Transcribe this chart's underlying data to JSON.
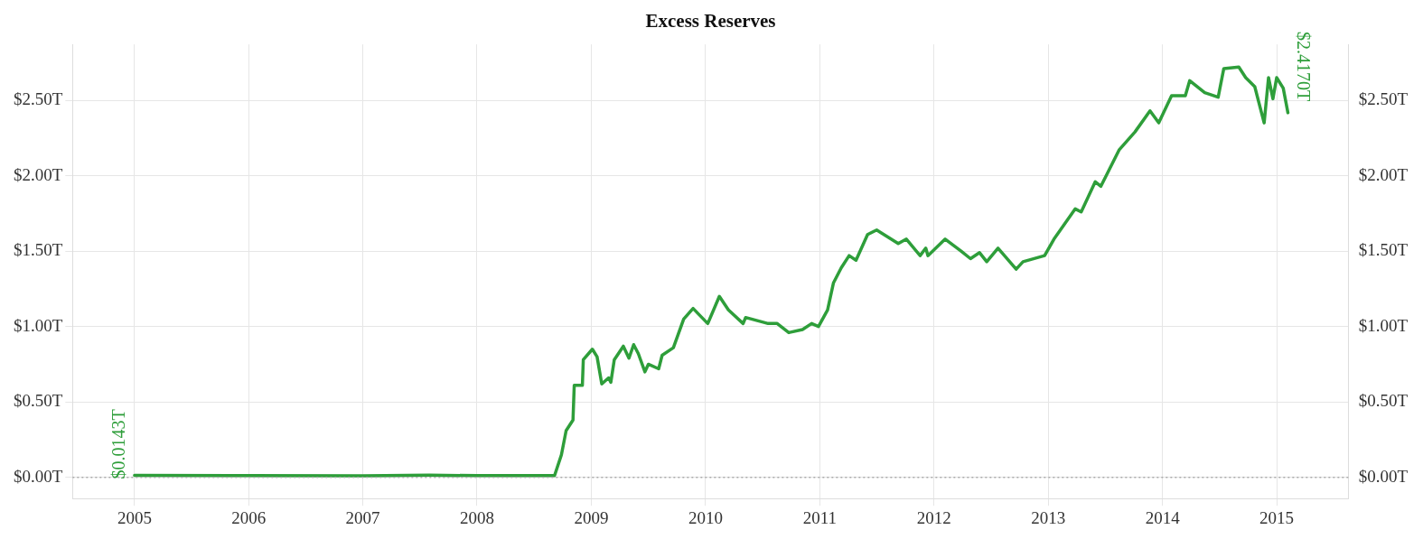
{
  "chart_data": {
    "type": "line",
    "title": "Excess Reserves",
    "x": [
      "2005-01-01",
      "2006-01-01",
      "2007-01-01",
      "2007-08-01",
      "2008-01-01",
      "2008-09-05",
      "2008-09-27",
      "2008-10-12",
      "2008-11-03",
      "2008-11-07",
      "2008-12-03",
      "2008-12-06",
      "2009-01-04",
      "2009-01-19",
      "2009-02-03",
      "2009-02-25",
      "2009-03-04",
      "2009-03-15",
      "2009-04-13",
      "2009-05-01",
      "2009-05-16",
      "2009-05-31",
      "2009-06-21",
      "2009-07-02",
      "2009-08-04",
      "2009-08-15",
      "2009-09-20",
      "2009-10-23",
      "2009-11-22",
      "2010-01-08",
      "2010-02-14",
      "2010-03-15",
      "2010-05-01",
      "2010-05-09",
      "2010-07-20",
      "2010-08-18",
      "2010-09-24",
      "2010-11-07",
      "2010-12-06",
      "2010-12-28",
      "2011-01-26",
      "2011-02-14",
      "2011-03-11",
      "2011-04-05",
      "2011-04-27",
      "2011-06-03",
      "2011-07-02",
      "2011-09-09",
      "2011-10-05",
      "2011-11-18",
      "2011-12-06",
      "2011-12-13",
      "2012-02-06",
      "2012-03-28",
      "2012-04-27",
      "2012-05-26",
      "2012-06-18",
      "2012-07-24",
      "2012-09-20",
      "2012-10-12",
      "2012-12-20",
      "2013-01-19",
      "2013-03-28",
      "2013-04-16",
      "2013-05-31",
      "2013-06-18",
      "2013-08-15",
      "2013-10-05",
      "2013-11-22",
      "2013-12-20",
      "2014-01-30",
      "2014-03-15",
      "2014-03-29",
      "2014-05-16",
      "2014-06-28",
      "2014-07-16",
      "2014-09-02",
      "2014-09-24",
      "2014-10-23",
      "2014-11-22",
      "2014-12-06",
      "2014-12-20",
      "2015-01-01",
      "2015-01-22",
      "2015-02-06"
    ],
    "series": [
      {
        "color": "#2e9e3a",
        "values": [
          0.0143,
          0.012,
          0.011,
          0.015,
          0.012,
          0.012,
          0.15,
          0.31,
          0.38,
          0.61,
          0.61,
          0.78,
          0.85,
          0.8,
          0.62,
          0.66,
          0.63,
          0.78,
          0.87,
          0.79,
          0.88,
          0.82,
          0.7,
          0.75,
          0.72,
          0.81,
          0.86,
          1.05,
          1.12,
          1.02,
          1.2,
          1.11,
          1.02,
          1.06,
          1.02,
          1.02,
          0.96,
          0.98,
          1.02,
          1.0,
          1.11,
          1.29,
          1.39,
          1.47,
          1.44,
          1.61,
          1.64,
          1.55,
          1.58,
          1.47,
          1.52,
          1.47,
          1.58,
          1.5,
          1.45,
          1.49,
          1.43,
          1.52,
          1.38,
          1.43,
          1.47,
          1.58,
          1.78,
          1.76,
          1.96,
          1.93,
          2.17,
          2.29,
          2.43,
          2.35,
          2.53,
          2.53,
          2.63,
          2.55,
          2.52,
          2.71,
          2.72,
          2.65,
          2.59,
          2.35,
          2.65,
          2.51,
          2.65,
          2.58,
          2.417
        ]
      }
    ],
    "xlim": [
      "2004-06-17",
      "2015-08-19"
    ],
    "xticks": [
      "2005",
      "2006",
      "2007",
      "2008",
      "2009",
      "2010",
      "2011",
      "2012",
      "2013",
      "2014",
      "2015"
    ],
    "ylim": [
      -0.14,
      2.87
    ],
    "yticks": [
      {
        "value": 0,
        "label": "$0.00T"
      },
      {
        "value": 0.5,
        "label": "$0.50T"
      },
      {
        "value": 1,
        "label": "$1.00T"
      },
      {
        "value": 1.5,
        "label": "$1.50T"
      },
      {
        "value": 2,
        "label": "$2.00T"
      },
      {
        "value": 2.5,
        "label": "$2.50T"
      }
    ],
    "y2lim": [
      -0.14,
      2.87
    ],
    "y2ticks": [
      {
        "value": 0,
        "label": "$0.00T"
      },
      {
        "value": 0.5,
        "label": "$0.50T"
      },
      {
        "value": 1,
        "label": "$1.00T"
      },
      {
        "value": 1.5,
        "label": "$1.50T"
      },
      {
        "value": 2,
        "label": "$2.00T"
      },
      {
        "value": 2.5,
        "label": "$2.50T"
      }
    ],
    "ref_lines": [
      {
        "axis": "y",
        "value": 0,
        "color": "#aaaaaa",
        "line_style": "dotted"
      }
    ],
    "annotations": [
      {
        "text": "$0.0143T",
        "x": "2005-01-01",
        "y": 0.0143
      },
      {
        "text": "$2.4170T",
        "x": "2015-02-06",
        "y": 2.417
      }
    ],
    "grid": true,
    "legend": false,
    "marker": "none",
    "line_style": "solid"
  }
}
